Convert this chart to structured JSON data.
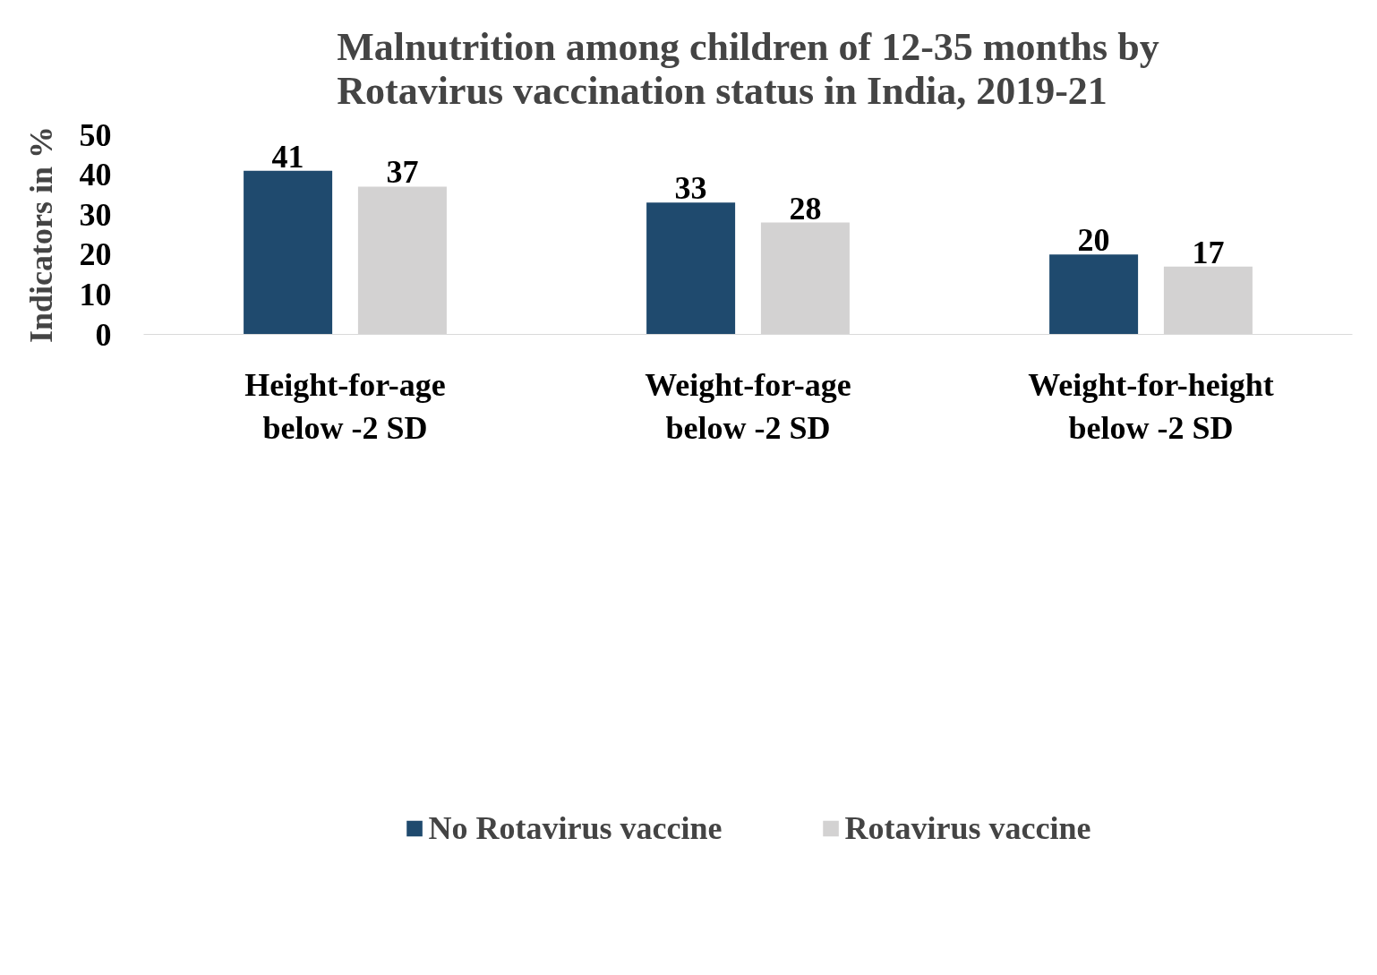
{
  "chart_data": {
    "type": "bar",
    "title": "Malnutrition among children of 12-35 months by Rotavirus vaccination status in India, 2019-21",
    "ylabel": "Indicators in %",
    "categories": [
      "Height-for-age below -2 SD",
      "Weight-for-age below -2 SD",
      "Weight-for-height below -2 SD"
    ],
    "series": [
      {
        "name": "No Rotavirus vaccine",
        "color": "#1f4a6e",
        "values": [
          41,
          33,
          20
        ]
      },
      {
        "name": "Rotavirus vaccine",
        "color": "#d3d2d2",
        "values": [
          37,
          28,
          17
        ]
      }
    ],
    "ylim": [
      0,
      50
    ],
    "yticks": [
      0,
      10,
      20,
      30,
      40,
      50
    ],
    "grid": false,
    "legend": "bottom",
    "data_labels": true
  }
}
